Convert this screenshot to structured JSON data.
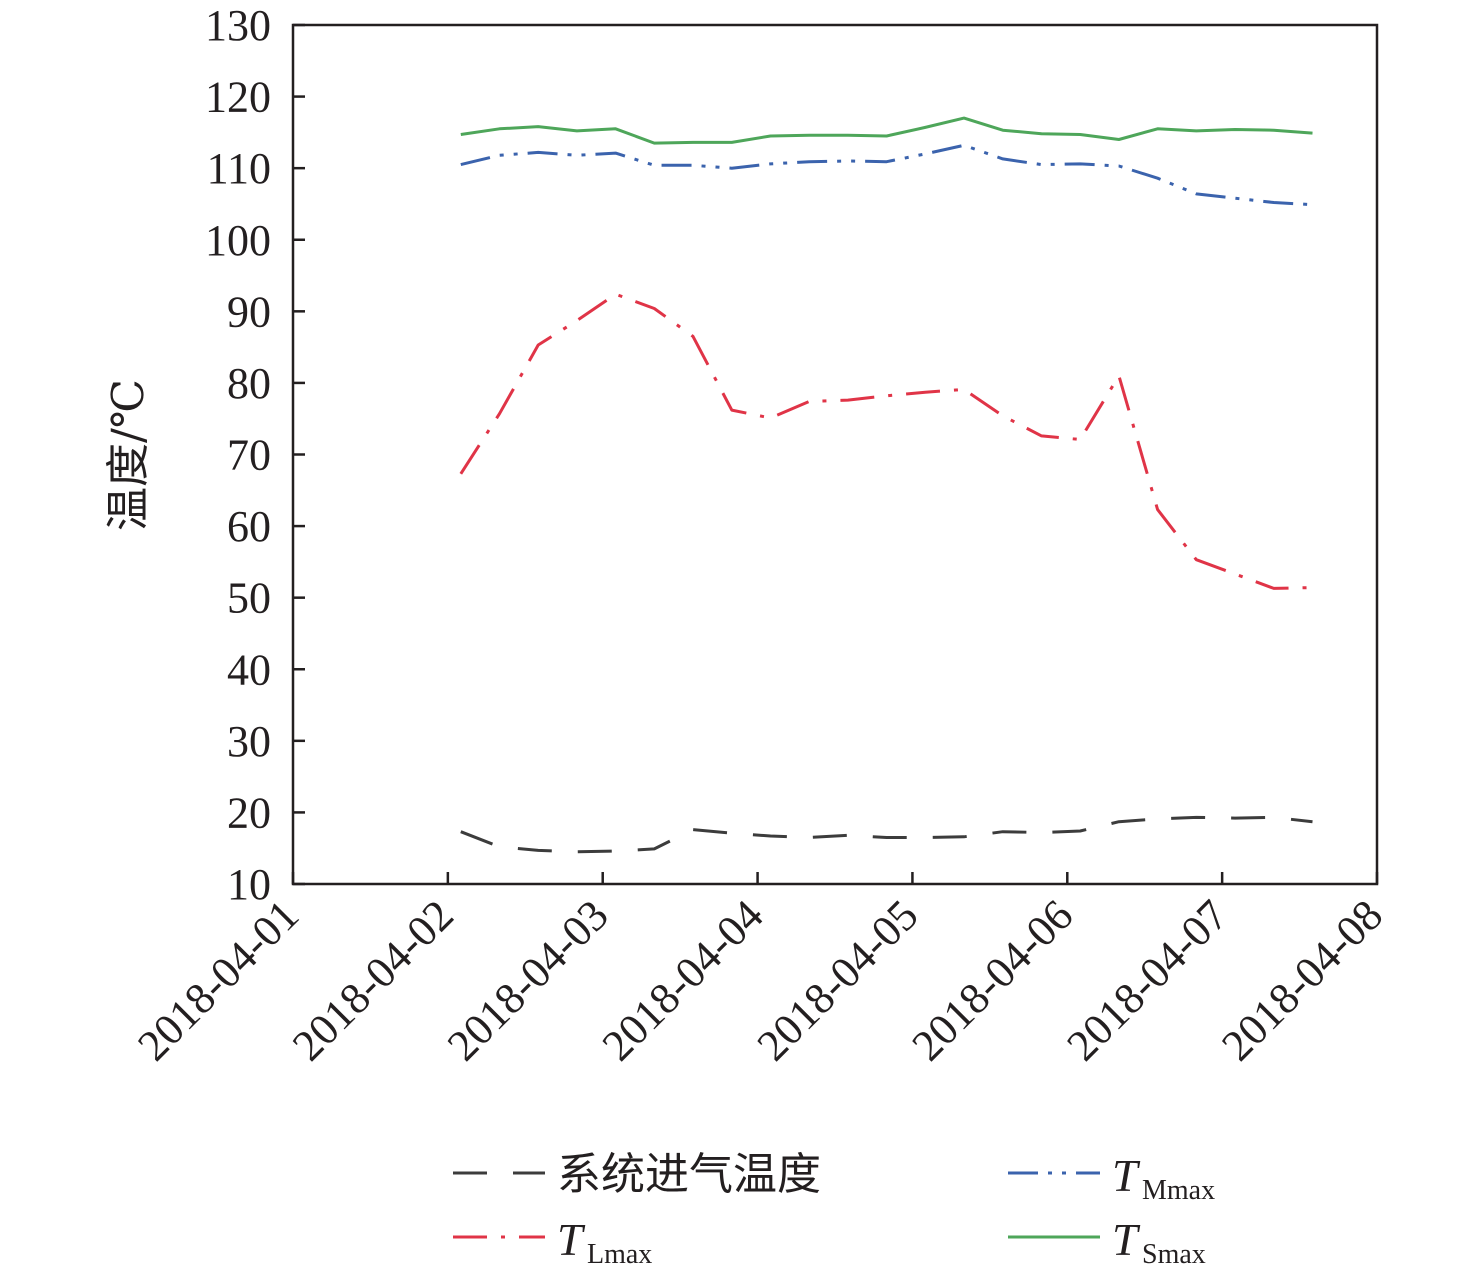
{
  "chart_data": {
    "type": "line",
    "title": "",
    "xlabel": "",
    "ylabel": "温度/℃",
    "ylim": [
      10,
      130
    ],
    "yticks": [
      "10",
      "20",
      "30",
      "40",
      "50",
      "60",
      "70",
      "80",
      "90",
      "100",
      "110",
      "120",
      "130"
    ],
    "xlim": [
      "2018-04-01",
      "2018-04-08"
    ],
    "xticks": [
      "2018-04-01",
      "2018-04-02",
      "2018-04-03",
      "2018-04-04",
      "2018-04-05",
      "2018-04-06",
      "2018-04-07",
      "2018-04-08"
    ],
    "grid": false,
    "legend_position": "bottom",
    "x": [
      "2018-04-02 02:00",
      "2018-04-02 08:00",
      "2018-04-02 14:00",
      "2018-04-02 20:00",
      "2018-04-03 02:00",
      "2018-04-03 08:00",
      "2018-04-03 14:00",
      "2018-04-03 20:00",
      "2018-04-04 02:00",
      "2018-04-04 08:00",
      "2018-04-04 14:00",
      "2018-04-04 20:00",
      "2018-04-05 02:00",
      "2018-04-05 08:00",
      "2018-04-05 14:00",
      "2018-04-05 20:00",
      "2018-04-06 02:00",
      "2018-04-06 08:00",
      "2018-04-06 14:00",
      "2018-04-06 20:00",
      "2018-04-07 02:00",
      "2018-04-07 08:00",
      "2018-04-07 14:00"
    ],
    "series": [
      {
        "name": "系统进气温度",
        "color": "#3c3c3c",
        "dash": "dash",
        "values": [
          17.3,
          15.2,
          14.7,
          14.5,
          14.6,
          14.9,
          17.6,
          17.1,
          16.7,
          16.5,
          16.8,
          16.5,
          16.5,
          16.6,
          17.3,
          17.2,
          17.4,
          18.7,
          19.1,
          19.3,
          19.2,
          19.3,
          18.7
        ]
      },
      {
        "name": "T",
        "name_sub": "Mmax",
        "color": "#3b63ad",
        "dash": "dashdotdot",
        "values": [
          110.5,
          111.8,
          112.2,
          111.8,
          112.1,
          110.4,
          110.4,
          110.0,
          110.6,
          110.9,
          111.0,
          110.9,
          112.0,
          113.2,
          111.3,
          110.5,
          110.6,
          110.3,
          108.6,
          106.4,
          105.8,
          105.2,
          104.9
        ]
      },
      {
        "name": "T",
        "name_sub": "Lmax",
        "color": "#e03447",
        "dash": "dashdot",
        "values": [
          67.3,
          75.7,
          85.3,
          88.7,
          92.4,
          90.4,
          86.5,
          76.2,
          75.1,
          77.4,
          77.6,
          78.2,
          78.7,
          79.1,
          75.4,
          72.6,
          72.1,
          81.0,
          62.3,
          55.3,
          53.3,
          51.3,
          51.4
        ]
      },
      {
        "name": "T",
        "name_sub": "Smax",
        "color": "#4ea65a",
        "dash": "solid",
        "values": [
          114.7,
          115.5,
          115.8,
          115.2,
          115.5,
          113.5,
          113.6,
          113.6,
          114.5,
          114.6,
          114.6,
          114.5,
          115.7,
          117.0,
          115.3,
          114.8,
          114.7,
          114.0,
          115.5,
          115.2,
          115.4,
          115.3,
          114.9
        ]
      }
    ]
  }
}
